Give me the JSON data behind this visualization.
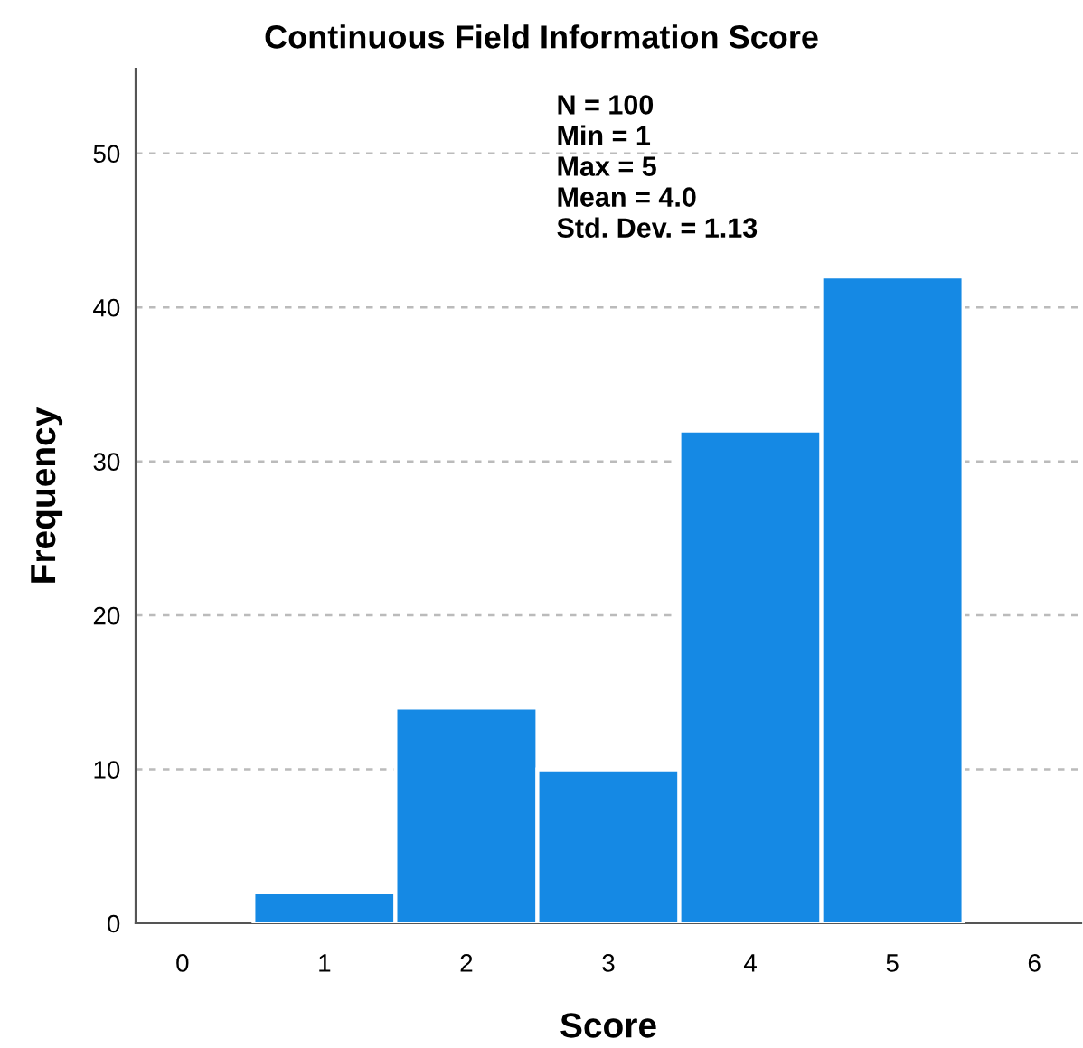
{
  "chart_data": {
    "type": "histogram",
    "title": "Continuous Field Information Score",
    "xlabel": "Score",
    "ylabel": "Frequency",
    "bins": [
      0.5,
      1.5,
      2.5,
      3.5,
      4.5,
      5.5
    ],
    "values": [
      2,
      14,
      10,
      32,
      42
    ],
    "color": "#1589e4",
    "xlim": [
      -0.33,
      6.33
    ],
    "xticks": [
      0,
      1,
      2,
      3,
      4,
      5,
      6
    ],
    "ylim": [
      0,
      55.5
    ],
    "yticks": [
      0,
      10,
      20,
      30,
      40,
      50
    ],
    "grid": "y",
    "annotations": [
      "N = 100",
      "Min = 1",
      "Max = 5",
      "Mean = 4.0",
      "Std. Dev. = 1.13"
    ]
  }
}
